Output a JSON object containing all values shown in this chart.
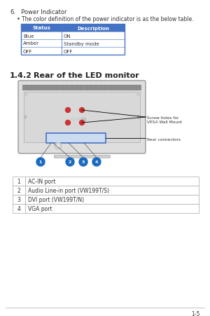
{
  "bg_color": "#ffffff",
  "page_number": "1-5",
  "section6_number": "6.",
  "section6_title": "Power Indicator",
  "section6_bullet": "The color definition of the power indicator is as the below table.",
  "table1_header": [
    "Status",
    "Description"
  ],
  "table1_header_bg": "#4472c4",
  "table1_header_fg": "#ffffff",
  "table1_rows": [
    [
      "Blue",
      "ON"
    ],
    [
      "Amber",
      "Standby mode"
    ],
    [
      "OFF",
      "OFF"
    ]
  ],
  "table1_border": "#4472c4",
  "section142_number": "1.4.2",
  "section142_title": "Rear of the LED monitor",
  "connector_table_rows": [
    [
      "1",
      "AC-IN port"
    ],
    [
      "2",
      "Audio Line-in port (VW199T/S)"
    ],
    [
      "3",
      "DVI port (VW199T/N)"
    ],
    [
      "4",
      "VGA port"
    ]
  ],
  "annotation_screw": "Screw holes for\nVESA Wall Mount",
  "annotation_rear": "Rear connectors",
  "screw_color": "#cc3333",
  "circle_color": "#1a6bbf",
  "connector_border": "#4472c4",
  "connector_fill": "#ccdcf0",
  "monitor_frame": "#aaaaaa",
  "monitor_fill": "#e0e0e0",
  "monitor_inner": "#d0d0d0",
  "strip_color": "#909090"
}
